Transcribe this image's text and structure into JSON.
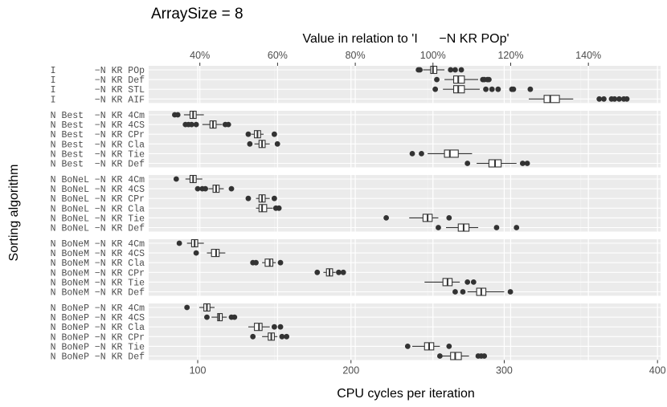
{
  "chart_data": {
    "type": "boxplot",
    "title": "ArraySize = 8",
    "xlabel": "CPU cycles per iteration",
    "ylabel": "Sorting algorithm",
    "secondary_xlabel": "Value in relation to 'I      −N KR POp'",
    "xlim": [
      68,
      402
    ],
    "x_ticks": [
      100,
      200,
      300,
      400
    ],
    "x_tick_labels": [
      "100",
      "200",
      "300",
      "400"
    ],
    "secondary_ticks": [
      40,
      60,
      80,
      100,
      120,
      140
    ],
    "secondary_tick_labels": [
      "40%",
      "60%",
      "80%",
      "100%",
      "120%",
      "140%"
    ],
    "reference_value": 253.5,
    "groups": [
      {
        "name": "I",
        "rows": [
          {
            "label": "I       −N KR POp",
            "box": [
              252,
              253.5,
              256
            ],
            "whiskers": [
              247,
              261
            ],
            "outliers": [
              244,
              245,
              265,
              268,
              272
            ]
          },
          {
            "label": "I       −N KR Def",
            "box": [
              267,
              270,
              274
            ],
            "whiskers": [
              261,
              283
            ],
            "outliers": [
              256,
              286,
              287,
              289,
              290
            ]
          },
          {
            "label": "I       −N KR STL",
            "box": [
              267,
              270,
              274
            ],
            "whiskers": [
              260,
              284
            ],
            "outliers": [
              255,
              288,
              292,
              296,
              305,
              306,
              317
            ]
          },
          {
            "label": "I       −N KR AIF",
            "box": [
              326,
              330,
              336
            ],
            "whiskers": [
              316,
              345
            ],
            "outliers": [
              362,
              365,
              370,
              372,
              375,
              378,
              380
            ]
          }
        ]
      },
      {
        "name": "N Best",
        "rows": [
          {
            "label": "N Best  −N KR 4Cm",
            "box": [
              95,
              97,
              99
            ],
            "whiskers": [
              91,
              104
            ],
            "outliers": [
              85,
              87
            ]
          },
          {
            "label": "N Best  −N KR 4CS",
            "box": [
              108,
              110,
              112
            ],
            "whiskers": [
              103,
              116
            ],
            "outliers": [
              92,
              94,
              96,
              99,
              118,
              120
            ]
          },
          {
            "label": "N Best  −N KR CPr",
            "box": [
              137,
              139,
              141
            ],
            "whiskers": [
              135,
              143
            ],
            "outliers": [
              133,
              150
            ]
          },
          {
            "label": "N Best  −N KR Cla",
            "box": [
              140,
              142,
              144
            ],
            "whiskers": [
              137,
              147
            ],
            "outliers": [
              134,
              152
            ]
          },
          {
            "label": "N Best  −N KR Tie",
            "box": [
              261,
              264.5,
              270
            ],
            "whiskers": [
              250,
              279
            ],
            "outliers": [
              240,
              246
            ]
          },
          {
            "label": "N Best  −N KR Def",
            "box": [
              290,
              294,
              298
            ],
            "whiskers": [
              282,
              308
            ],
            "outliers": [
              276,
              312,
              315
            ]
          }
        ]
      },
      {
        "name": "N BoNeL",
        "rows": [
          {
            "label": "N BoNeL −N KR 4Cm",
            "box": [
              95,
              97,
              99
            ],
            "whiskers": [
              92,
              103
            ],
            "outliers": [
              86
            ]
          },
          {
            "label": "N BoNeL −N KR 4CS",
            "box": [
              110,
              112,
              114
            ],
            "whiskers": [
              107,
              117
            ],
            "outliers": [
              100,
              103,
              105,
              122
            ]
          },
          {
            "label": "N BoNeL −N KR CPr",
            "box": [
              140,
              142,
              144
            ],
            "whiskers": [
              138,
              147
            ],
            "outliers": [
              133,
              150
            ]
          },
          {
            "label": "N BoNeL −N KR Cla",
            "box": [
              140,
              142,
              145
            ],
            "whiskers": [
              138,
              149
            ],
            "outliers": [
              151,
              153
            ]
          },
          {
            "label": "N BoNeL −N KR Tie",
            "box": [
              247,
              250,
              253
            ],
            "whiskers": [
              238,
              257
            ],
            "outliers": [
              223,
              264
            ]
          },
          {
            "label": "N BoNeL −N KR Def",
            "box": [
              270,
              273.5,
              277
            ],
            "whiskers": [
              262,
              283
            ],
            "outliers": [
              257,
              295,
              308
            ]
          }
        ]
      },
      {
        "name": "N BoNeM",
        "rows": [
          {
            "label": "N BoNeM −N KR 4Cm",
            "box": [
              96,
              98,
              100
            ],
            "whiskers": [
              93,
              104
            ],
            "outliers": [
              88
            ]
          },
          {
            "label": "N BoNeM −N KR 4CS",
            "box": [
              109,
              112,
              114
            ],
            "whiskers": [
              106,
              118
            ],
            "outliers": [
              99
            ]
          },
          {
            "label": "N BoNeM −N KR Cla",
            "box": [
              144,
              147,
              149
            ],
            "whiskers": [
              142,
              151
            ],
            "outliers": [
              136,
              138,
              154
            ]
          },
          {
            "label": "N BoNeM −N KR CPr",
            "box": [
              184,
              186,
              188
            ],
            "whiskers": [
              182,
              190
            ],
            "outliers": [
              178,
              192,
              195
            ]
          },
          {
            "label": "N BoNeM −N KR Tie",
            "box": [
              260,
              263,
              266
            ],
            "whiskers": [
              248,
              271
            ],
            "outliers": [
              276,
              280
            ]
          },
          {
            "label": "N BoNeM −N KR Def",
            "box": [
              282,
              285,
              288
            ],
            "whiskers": [
              276,
              300
            ],
            "outliers": [
              268,
              273,
              304
            ]
          }
        ]
      },
      {
        "name": "N BoNeP",
        "rows": [
          {
            "label": "N BoNeP −N KR 4Cm",
            "box": [
              104,
              106,
              108
            ],
            "whiskers": [
              101,
              111
            ],
            "outliers": [
              93
            ]
          },
          {
            "label": "N BoNeP −N KR 4CS",
            "box": [
              113,
              114,
              116
            ],
            "whiskers": [
              109,
              119
            ],
            "outliers": [
              106,
              122,
              124
            ]
          },
          {
            "label": "N BoNeP −N KR Cla",
            "box": [
              137,
              140,
              142
            ],
            "whiskers": [
              133,
              147
            ],
            "outliers": [
              150,
              154
            ]
          },
          {
            "label": "N BoNeP −N KR CPr",
            "box": [
              146,
              148,
              150
            ],
            "whiskers": [
              142,
              152
            ],
            "outliers": [
              136,
              155,
              158
            ]
          },
          {
            "label": "N BoNeP −N KR Tie",
            "box": [
              248,
              251,
              254
            ],
            "whiskers": [
              240,
              258
            ],
            "outliers": [
              237,
              264
            ]
          },
          {
            "label": "N BoNeP −N KR Def",
            "box": [
              265,
              268,
              272
            ],
            "whiskers": [
              258,
              277
            ],
            "outliers": [
              258,
              283,
              285,
              287
            ]
          }
        ]
      }
    ]
  }
}
